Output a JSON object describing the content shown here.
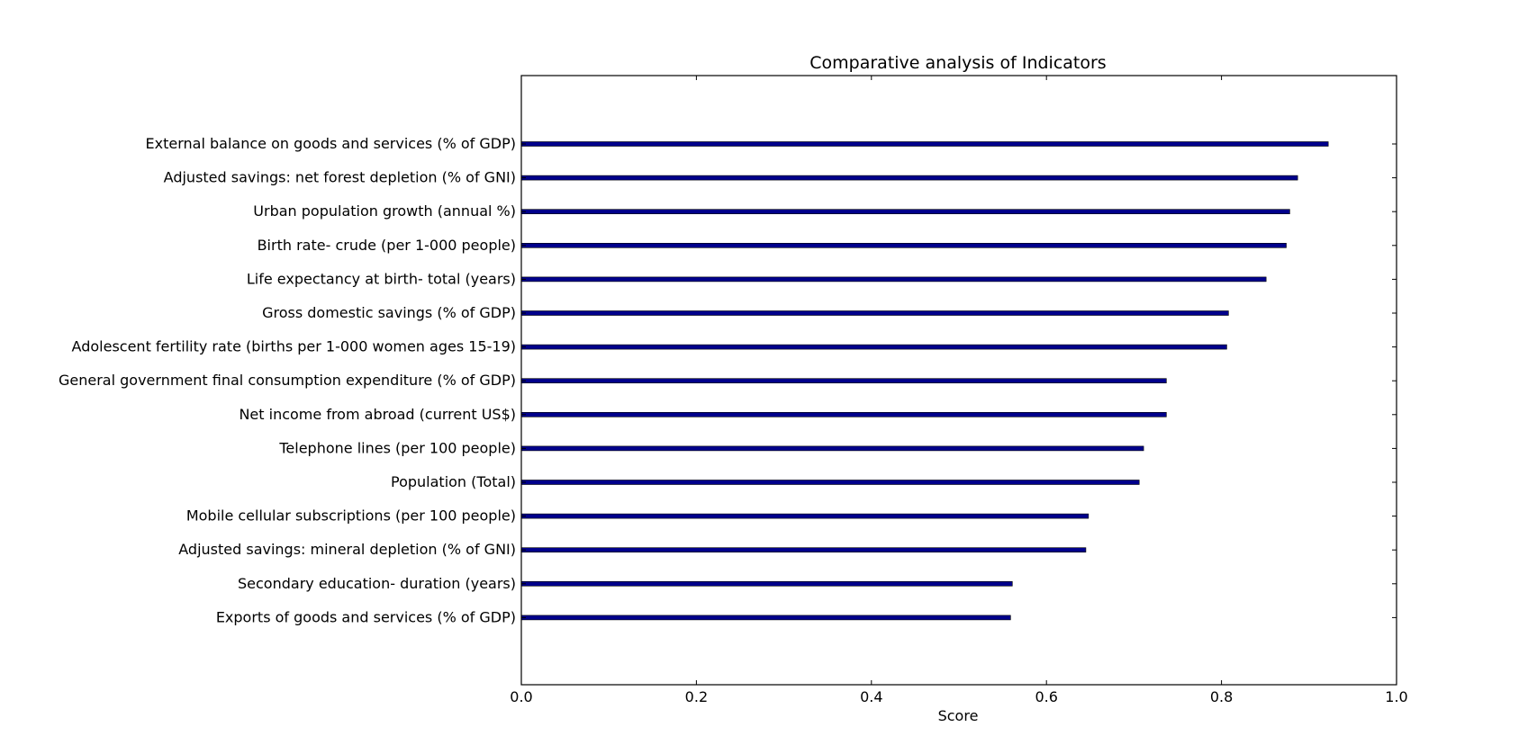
{
  "chart_data": {
    "type": "bar",
    "orientation": "horizontal",
    "title": "Comparative analysis of Indicators",
    "xlabel": "Score",
    "ylabel": "",
    "xlim": [
      0.0,
      1.0
    ],
    "xticks": [
      "0.0",
      "0.2",
      "0.4",
      "0.6",
      "0.8",
      "1.0"
    ],
    "grid": false,
    "bar_color": "#00008b",
    "categories": [
      "External balance on goods and services (% of GDP)",
      "Adjusted savings: net forest depletion (% of GNI)",
      "Urban population growth (annual %)",
      "Birth rate- crude (per 1-000 people)",
      "Life expectancy at birth- total (years)",
      "Gross domestic savings (% of GDP)",
      "Adolescent fertility rate (births per 1-000 women ages 15-19)",
      "General government final consumption expenditure (% of GDP)",
      "Net income from abroad (current US$)",
      "Telephone lines (per 100 people)",
      "Population (Total)",
      "Mobile cellular subscriptions (per 100 people)",
      "Adjusted savings: mineral depletion (% of GNI)",
      "Secondary education- duration (years)",
      "Exports of goods and services (% of GDP)"
    ],
    "values": [
      0.922,
      0.887,
      0.878,
      0.874,
      0.851,
      0.808,
      0.806,
      0.737,
      0.737,
      0.711,
      0.706,
      0.648,
      0.645,
      0.561,
      0.559
    ]
  }
}
